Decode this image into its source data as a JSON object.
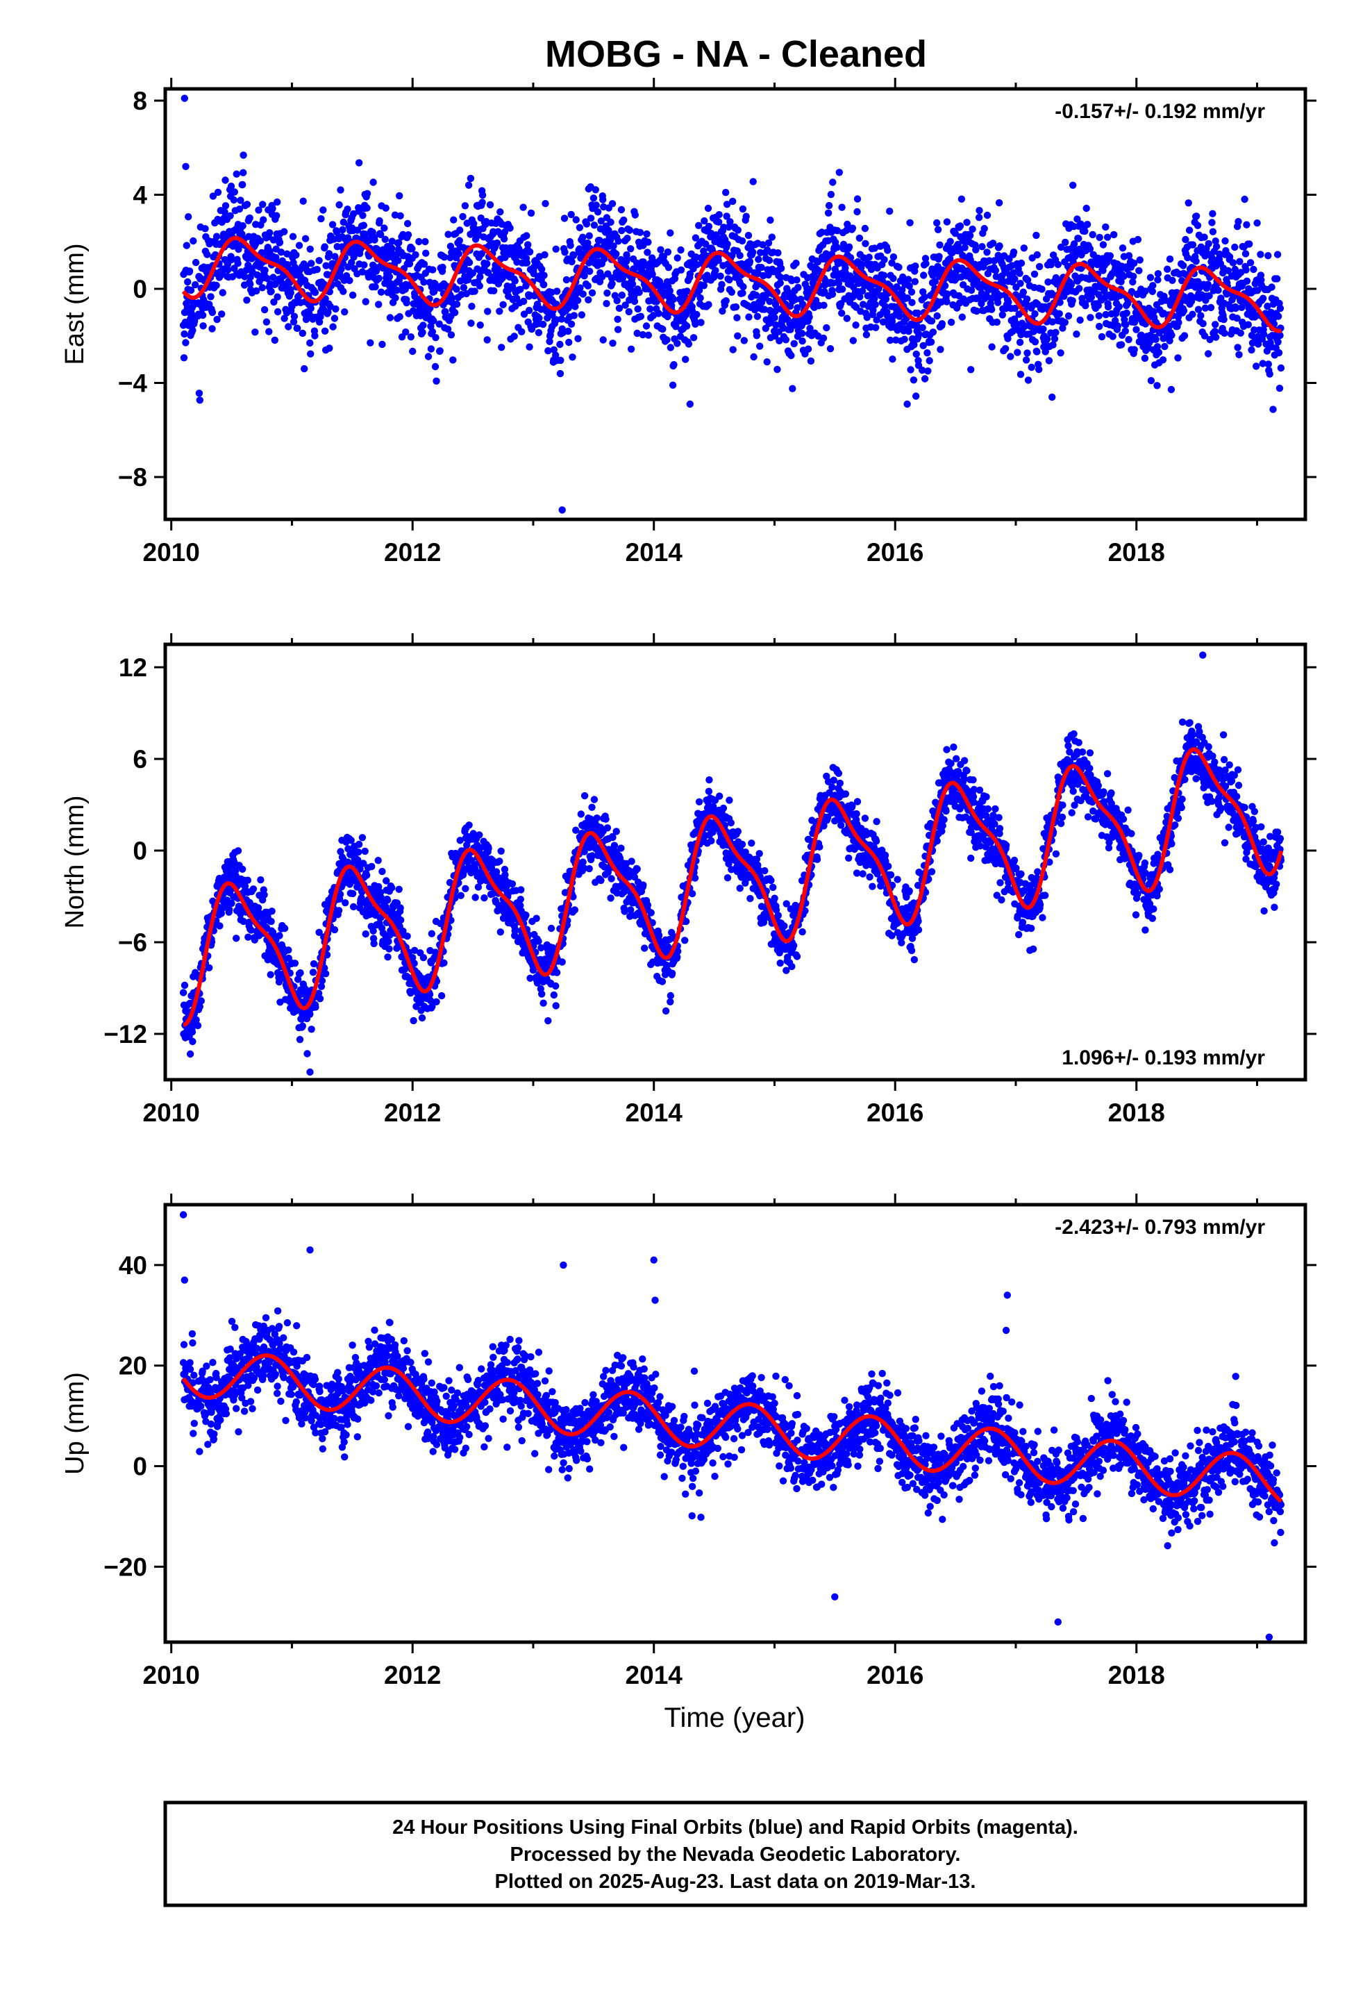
{
  "title": "MOBG  - NA - Cleaned",
  "xaxis_label": "Time (year)",
  "footer": {
    "line1": "24 Hour Positions Using Final Orbits (blue) and Rapid Orbits (magenta).",
    "line2": "Processed by the Nevada Geodetic Laboratory.",
    "line3": "Plotted on 2025-Aug-23. Last data on 2019-Mar-13."
  },
  "colors": {
    "points": "#0000ff",
    "fit": "#ff0000",
    "axis": "#000000"
  },
  "chart_data": [
    {
      "type": "scatter",
      "ylabel": "East (mm)",
      "rate": "-0.157+/- 0.192 mm/yr",
      "rate_position": "top-right",
      "xlim": [
        2009.95,
        2019.4
      ],
      "ylim": [
        -9.8,
        8.5
      ],
      "x_ticks": [
        2010,
        2012,
        2014,
        2016,
        2018
      ],
      "x_tick_labels": [
        "2010",
        "2012",
        "2014",
        "2016",
        "2018"
      ],
      "y_ticks": [
        -8,
        -4,
        0,
        4,
        8
      ],
      "y_tick_labels": [
        "−8",
        "−4",
        "0",
        "4",
        "8"
      ],
      "data_start": 2010.1,
      "data_end": 2019.2,
      "fit": {
        "offset": 0.3,
        "trend": -0.157,
        "annual_amp": 1.1,
        "peak_phase": 0.62,
        "semiannual_amp": 0.4
      },
      "scatter_sigma": 1.2,
      "seed": 11,
      "outliers": [
        [
          2010.11,
          8.1
        ],
        [
          2010.12,
          5.2
        ],
        [
          2013.24,
          -9.4
        ],
        [
          2014.3,
          -4.9
        ],
        [
          2016.1,
          -4.9
        ]
      ],
      "grid": false
    },
    {
      "type": "scatter",
      "ylabel": "North (mm)",
      "rate": "1.096+/- 0.193 mm/yr",
      "rate_position": "bottom-right",
      "xlim": [
        2009.95,
        2019.4
      ],
      "ylim": [
        -15,
        13.5
      ],
      "x_ticks": [
        2010,
        2012,
        2014,
        2016,
        2018
      ],
      "x_tick_labels": [
        "2010",
        "2012",
        "2014",
        "2016",
        "2018"
      ],
      "y_ticks": [
        -12,
        -6,
        0,
        6,
        12
      ],
      "y_tick_labels": [
        "−12",
        "−6",
        "0",
        "6",
        "12"
      ],
      "data_start": 2010.1,
      "data_end": 2019.2,
      "fit": {
        "offset": -1.8,
        "trend": 1.096,
        "annual_amp": 3.9,
        "peak_phase": 0.55,
        "semiannual_amp": 1.2
      },
      "scatter_sigma": 1.0,
      "seed": 23,
      "outliers": [
        [
          2011.15,
          -14.5
        ],
        [
          2014.1,
          -10.5
        ],
        [
          2018.55,
          12.8
        ],
        [
          2010.12,
          -10.2
        ]
      ],
      "grid": false
    },
    {
      "type": "scatter",
      "ylabel": "Up (mm)",
      "rate": "-2.423+/- 0.793 mm/yr",
      "rate_position": "top-right",
      "xlim": [
        2009.95,
        2019.4
      ],
      "ylim": [
        -35,
        52
      ],
      "x_ticks": [
        2010,
        2012,
        2014,
        2016,
        2018
      ],
      "x_tick_labels": [
        "2010",
        "2012",
        "2014",
        "2016",
        "2018"
      ],
      "y_ticks": [
        -20,
        0,
        20,
        40
      ],
      "y_tick_labels": [
        "−20",
        "0",
        "20",
        "40"
      ],
      "data_start": 2010.1,
      "data_end": 2019.2,
      "fit": {
        "offset": 8.0,
        "trend": -2.423,
        "annual_amp": 4.8,
        "peak_phase": 0.8,
        "semiannual_amp": 0.0
      },
      "scatter_sigma": 3.6,
      "seed": 37,
      "outliers": [
        [
          2010.1,
          50
        ],
        [
          2010.11,
          37
        ],
        [
          2011.15,
          43
        ],
        [
          2013.25,
          40
        ],
        [
          2014.0,
          41
        ],
        [
          2014.01,
          33
        ],
        [
          2016.93,
          34
        ],
        [
          2016.92,
          27
        ],
        [
          2015.5,
          -26
        ],
        [
          2017.35,
          -31
        ],
        [
          2019.1,
          -34
        ]
      ],
      "grid": false
    }
  ]
}
